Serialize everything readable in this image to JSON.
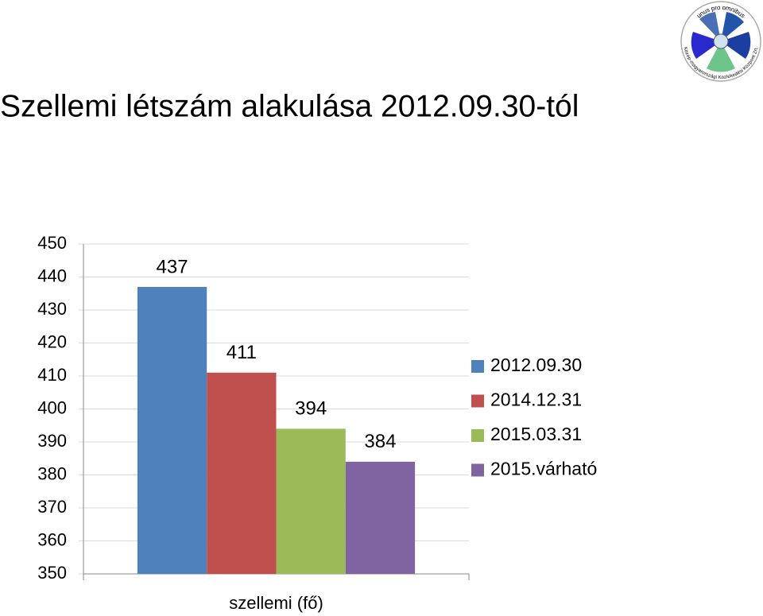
{
  "chart_data": {
    "type": "bar",
    "title": "Szellemi létszám alakulása 2012.09.30-tól",
    "categories": [
      "szellemi (fő)"
    ],
    "series": [
      {
        "name": "2012.09.30",
        "color": "#4f81bd",
        "values": [
          437
        ]
      },
      {
        "name": "2014.12.31",
        "color": "#c0504d",
        "values": [
          411
        ]
      },
      {
        "name": "2015.03.31",
        "color": "#9bbb59",
        "values": [
          394
        ]
      },
      {
        "name": "2015.várható",
        "color": "#8064a2",
        "values": [
          384
        ]
      }
    ],
    "ylim": [
      350,
      450
    ],
    "yticks": [
      350,
      360,
      370,
      380,
      390,
      400,
      410,
      420,
      430,
      440,
      450
    ],
    "grid": true,
    "legend": "right"
  },
  "logo": {
    "top_text": "unus pro omnibus",
    "bottom_text": "Közép-magyarországi Közlekedési Központ Zrt."
  }
}
